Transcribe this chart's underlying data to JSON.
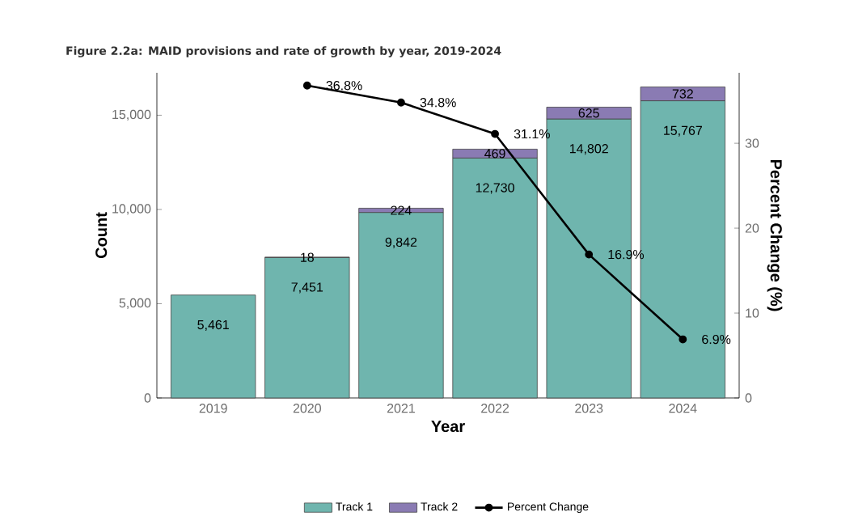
{
  "chart_data": {
    "type": "bar",
    "title": "Figure 2.2a: MAID provisions and rate of growth by year, 2019-2024",
    "xlabel": "Year",
    "ylabel": "Count",
    "y2label": "Percent Change (%)",
    "categories": [
      "2019",
      "2020",
      "2021",
      "2022",
      "2023",
      "2024"
    ],
    "stacked": true,
    "series": [
      {
        "name": "Track 1",
        "color": "#6fb5ae",
        "values": [
          5461,
          7451,
          9842,
          12730,
          14802,
          15767
        ],
        "value_labels": [
          "5,461",
          "7,451",
          "9,842",
          "12,730",
          "14,802",
          "15,767"
        ]
      },
      {
        "name": "Track 2",
        "color": "#8a7bb3",
        "values": [
          null,
          18,
          224,
          469,
          625,
          732
        ],
        "value_labels": [
          null,
          "18",
          "224",
          "469",
          "625",
          "732"
        ]
      },
      {
        "name": "Percent Change",
        "type": "line",
        "axis": "y2",
        "color": "#000000",
        "values": [
          null,
          36.8,
          34.8,
          31.1,
          16.9,
          6.9
        ],
        "value_labels": [
          null,
          "36.8%",
          "34.8%",
          "31.1%",
          "16.9%",
          "6.9%"
        ]
      }
    ],
    "ylim": [
      0,
      17250
    ],
    "yticks": [
      {
        "value": 0,
        "label": "0"
      },
      {
        "value": 5000,
        "label": "5,000"
      },
      {
        "value": 10000,
        "label": "10,000"
      },
      {
        "value": 15000,
        "label": "15,000"
      }
    ],
    "y2lim": [
      0,
      38.3
    ],
    "y2ticks": [
      0,
      10,
      20,
      30
    ],
    "marker": "circle",
    "legend": "bottom",
    "grid": false
  }
}
